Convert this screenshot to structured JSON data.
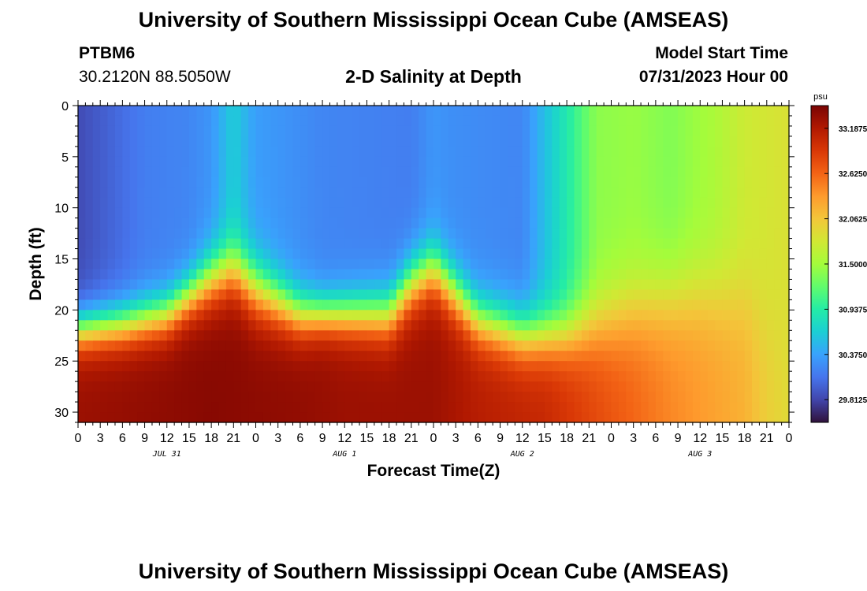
{
  "header": {
    "title": "University of Southern Mississippi Ocean Cube (AMSEAS)",
    "station_id": "PTBM6",
    "coordinates": "30.2120N  88.5050W",
    "plot_title": "2-D Salinity at Depth",
    "model_start_label": "Model Start Time",
    "model_start_value": "07/31/2023 Hour 00"
  },
  "footer": {
    "title": "University of Southern Mississippi Ocean Cube (AMSEAS)"
  },
  "chart_data": {
    "type": "heatmap",
    "xlabel": "Forecast Time(Z)",
    "ylabel": "Depth (ft)",
    "x_tick_labels": [
      "0",
      "3",
      "6",
      "9",
      "12",
      "15",
      "18",
      "21",
      "0",
      "3",
      "6",
      "9",
      "12",
      "15",
      "18",
      "21",
      "0",
      "3",
      "6",
      "9",
      "12",
      "15",
      "18",
      "21",
      "0",
      "3",
      "6",
      "9",
      "12",
      "15",
      "18",
      "21",
      "0"
    ],
    "date_labels": [
      "JUL 31",
      "AUG 1",
      "AUG 2",
      "AUG 3"
    ],
    "xlim_hours": [
      0,
      96
    ],
    "y_ticks": [
      0,
      5,
      10,
      15,
      20,
      25,
      30
    ],
    "ylim_ft": [
      0,
      31
    ],
    "colorbar": {
      "unit": "psu",
      "ticks": [
        "33.1875",
        "32.6250",
        "32.0625",
        "31.5000",
        "30.9375",
        "30.3750",
        "29.8125"
      ],
      "range": [
        29.53,
        33.47
      ],
      "colors": [
        "#30123b",
        "#4145ab",
        "#4675ed",
        "#39a2fc",
        "#1bcfd4",
        "#24eca6",
        "#61fc6c",
        "#a4fc3b",
        "#d1e834",
        "#f3c63a",
        "#fe9b2d",
        "#f36315",
        "#d93806",
        "#b11901",
        "#7a0403"
      ]
    },
    "grid": false,
    "fields": {
      "surface_salinity_keypoints": [
        [
          0,
          29.85
        ],
        [
          3,
          29.95
        ],
        [
          9,
          30.15
        ],
        [
          15,
          30.2
        ],
        [
          18,
          30.3
        ],
        [
          21,
          30.65
        ],
        [
          24,
          30.35
        ],
        [
          33,
          30.2
        ],
        [
          45,
          30.15
        ],
        [
          48,
          30.3
        ],
        [
          51,
          30.25
        ],
        [
          60,
          30.2
        ],
        [
          66,
          30.9
        ],
        [
          70,
          31.4
        ],
        [
          75,
          31.45
        ],
        [
          80,
          31.35
        ],
        [
          86,
          31.55
        ],
        [
          90,
          31.75
        ],
        [
          96,
          31.85
        ]
      ],
      "deep_salinity_keypoints": [
        [
          0,
          33.3
        ],
        [
          18,
          33.4
        ],
        [
          30,
          33.35
        ],
        [
          36,
          33.3
        ],
        [
          48,
          33.3
        ],
        [
          54,
          33.15
        ],
        [
          63,
          33.05
        ],
        [
          70,
          32.8
        ],
        [
          80,
          32.45
        ],
        [
          90,
          32.2
        ],
        [
          93,
          32.0
        ],
        [
          96,
          31.9
        ]
      ],
      "halocline_depth_ft_keypoints": [
        [
          0,
          22
        ],
        [
          6,
          21.5
        ],
        [
          12,
          20.5
        ],
        [
          18,
          17
        ],
        [
          21,
          16
        ],
        [
          24,
          18
        ],
        [
          30,
          20.5
        ],
        [
          42,
          20.5
        ],
        [
          45,
          17.5
        ],
        [
          48,
          16
        ],
        [
          51,
          18.5
        ],
        [
          54,
          21
        ],
        [
          60,
          22.5
        ],
        [
          66,
          22.5
        ],
        [
          70,
          21.5
        ],
        [
          75,
          20
        ],
        [
          80,
          19
        ],
        [
          84,
          18.5
        ],
        [
          90,
          19
        ],
        [
          93,
          21
        ],
        [
          96,
          23
        ]
      ],
      "halocline_thickness_ft_keypoints": [
        [
          0,
          5
        ],
        [
          15,
          5.5
        ],
        [
          18,
          6.5
        ],
        [
          24,
          7
        ],
        [
          33,
          5
        ],
        [
          45,
          6.5
        ],
        [
          54,
          6
        ],
        [
          66,
          6.5
        ],
        [
          72,
          9
        ],
        [
          84,
          10
        ],
        [
          96,
          10
        ]
      ]
    }
  }
}
